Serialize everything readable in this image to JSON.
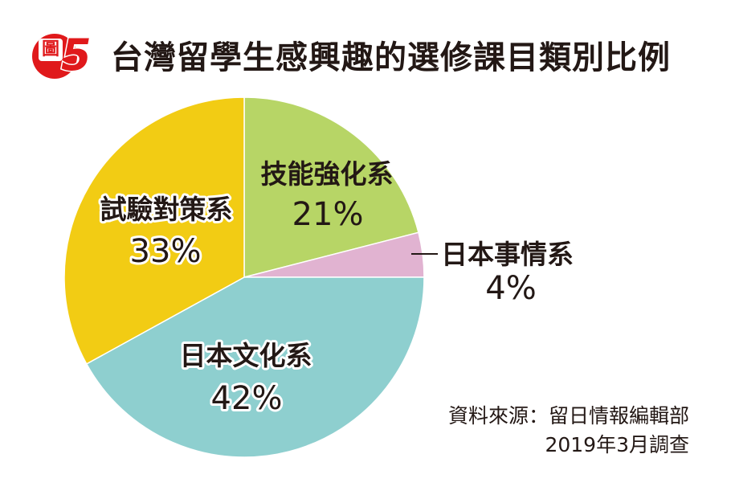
{
  "figure": {
    "badge_word": "圖",
    "badge_number": "5"
  },
  "chart_data": {
    "type": "pie",
    "title": "台灣留學生感興趣的選修課目類別比例",
    "slices": [
      {
        "label": "技能強化系",
        "value": 21,
        "value_label": "21%",
        "color": "#b7d566"
      },
      {
        "label": "日本事情系",
        "value": 4,
        "value_label": "4%",
        "color": "#e1b3d1"
      },
      {
        "label": "日本文化系",
        "value": 42,
        "value_label": "42%",
        "color": "#8ecfcf"
      },
      {
        "label": "試驗對策系",
        "value": 33,
        "value_label": "33%",
        "color": "#f2cc14"
      }
    ],
    "start": "12 o'clock",
    "direction": "clockwise"
  },
  "source": {
    "line1": "資料來源：留日情報編輯部",
    "line2": "2019年3月調查"
  },
  "colors": {
    "badge_red": "#e0191b",
    "text": "#231815",
    "divider": "#ffffff"
  }
}
